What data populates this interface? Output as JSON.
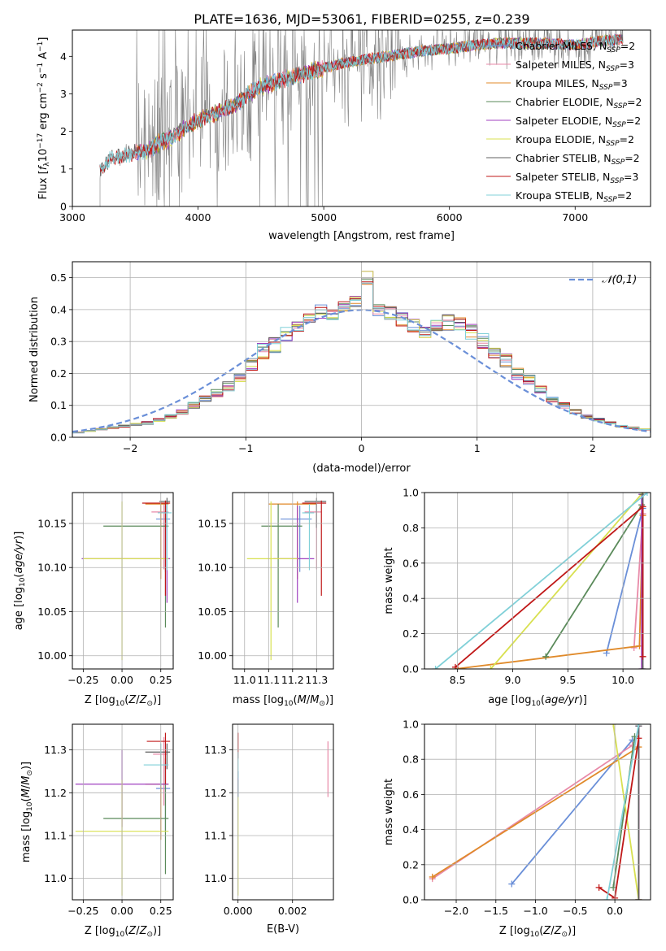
{
  "figure": {
    "title": "PLATE=1636, MJD=53061, FIBERID=0255, z=0.239"
  },
  "colors": {
    "Chabrier MILES": "#6a8fd8",
    "Salpeter MILES": "#e88aa8",
    "Kroupa MILES": "#e08a2a",
    "Chabrier ELODIE": "#5a8a5a",
    "Salpeter ELODIE": "#a040c0",
    "Kroupa ELODIE": "#d8e050",
    "Chabrier STELIB": "#606060",
    "Salpeter STELIB": "#c01818",
    "Kroupa STELIB": "#80d0d8",
    "data": "#808080",
    "normal": "#6a8fd8"
  },
  "chart_data": [
    {
      "id": "spectrum",
      "type": "line",
      "xlabel": "wavelength [Angstrom, rest frame]",
      "ylabel": "Flux [f_λ 10^-17 erg cm^-2 s^-1 A^-1]",
      "xlim": [
        3000,
        7600
      ],
      "ylim": [
        0,
        4.7
      ],
      "xticks": [
        3000,
        4000,
        5000,
        6000,
        7000
      ],
      "yticks": [
        0,
        1,
        2,
        3,
        4
      ],
      "grid": false,
      "legend_position": "top-right",
      "legend": [
        {
          "name": "Chabrier MILES",
          "nssp": "2"
        },
        {
          "name": "Salpeter MILES",
          "nssp": "3"
        },
        {
          "name": "Kroupa MILES",
          "nssp": "3"
        },
        {
          "name": "Chabrier ELODIE",
          "nssp": "2"
        },
        {
          "name": "Salpeter ELODIE",
          "nssp": "2"
        },
        {
          "name": "Kroupa ELODIE",
          "nssp": "2"
        },
        {
          "name": "Chabrier STELIB",
          "nssp": "2"
        },
        {
          "name": "Salpeter STELIB",
          "nssp": "3"
        },
        {
          "name": "Kroupa STELIB",
          "nssp": "2"
        }
      ],
      "continuum": {
        "x": [
          3220,
          3300,
          3400,
          3500,
          3600,
          3700,
          3800,
          3900,
          4000,
          4100,
          4200,
          4300,
          4400,
          4500,
          4700,
          4900,
          5000,
          5200,
          5400,
          5600,
          5800,
          6000,
          6200,
          6400,
          6600,
          6800,
          7000,
          7200,
          7380
        ],
        "y": [
          0.95,
          1.25,
          1.35,
          1.45,
          1.5,
          1.7,
          1.85,
          2.1,
          2.3,
          2.45,
          2.55,
          2.7,
          3.0,
          3.2,
          3.4,
          3.6,
          3.7,
          3.85,
          3.95,
          4.05,
          4.15,
          4.2,
          4.3,
          4.35,
          4.35,
          4.35,
          4.3,
          4.4,
          4.45
        ]
      }
    },
    {
      "id": "residuals",
      "type": "bar",
      "xlabel": "(data-model)/error",
      "ylabel": "Normed distribution",
      "xlim": [
        -2.5,
        2.5
      ],
      "ylim": [
        0,
        0.55
      ],
      "xticks": [
        -2,
        -1,
        0,
        1,
        2
      ],
      "yticks": [
        0.0,
        0.1,
        0.2,
        0.3,
        0.4,
        0.5
      ],
      "grid": true,
      "legend_position": "top-right",
      "legend_label": "𝒩(0,1)",
      "bins": [
        -2.5,
        -2.4,
        -2.3,
        -2.2,
        -2.1,
        -2.0,
        -1.9,
        -1.8,
        -1.7,
        -1.6,
        -1.5,
        -1.4,
        -1.3,
        -1.2,
        -1.1,
        -1.0,
        -0.9,
        -0.8,
        -0.7,
        -0.6,
        -0.5,
        -0.4,
        -0.3,
        -0.2,
        -0.1,
        0.0,
        0.1,
        0.2,
        0.3,
        0.4,
        0.5,
        0.6,
        0.7,
        0.8,
        0.9,
        1.0,
        1.1,
        1.2,
        1.3,
        1.4,
        1.5,
        1.6,
        1.7,
        1.8,
        1.9,
        2.0,
        2.1,
        2.2,
        2.3,
        2.4,
        2.5
      ],
      "histogram": [
        0.015,
        0.02,
        0.025,
        0.03,
        0.035,
        0.04,
        0.045,
        0.055,
        0.065,
        0.08,
        0.1,
        0.12,
        0.14,
        0.16,
        0.19,
        0.23,
        0.27,
        0.29,
        0.32,
        0.34,
        0.37,
        0.39,
        0.39,
        0.4,
        0.43,
        0.5,
        0.4,
        0.39,
        0.37,
        0.35,
        0.33,
        0.35,
        0.36,
        0.36,
        0.33,
        0.3,
        0.27,
        0.24,
        0.2,
        0.18,
        0.15,
        0.12,
        0.1,
        0.08,
        0.065,
        0.055,
        0.045,
        0.035,
        0.03,
        0.025
      ]
    },
    {
      "id": "age-vs-Z",
      "type": "scatter",
      "xlabel": "Z [log10(Z/Z☉)]",
      "ylabel": "age  [log10(age/yr)]",
      "xlim": [
        -0.32,
        0.33
      ],
      "ylim": [
        9.985,
        10.185
      ],
      "xticks": [
        -0.25,
        0.0,
        0.25
      ],
      "yticks": [
        10.0,
        10.05,
        10.1,
        10.15
      ],
      "grid": true,
      "points": [
        {
          "model": "Chabrier MILES",
          "x": 0.28,
          "y": 10.155,
          "xerr": [
            0.06,
            0.03
          ],
          "yerr": [
            0.06,
            0.015
          ]
        },
        {
          "model": "Salpeter MILES",
          "x": 0.27,
          "y": 10.163,
          "xerr": [
            0.08,
            0.03
          ],
          "yerr": [
            0.065,
            0.01
          ]
        },
        {
          "model": "Kroupa MILES",
          "x": 0.25,
          "y": 10.172,
          "xerr": [
            0.1,
            0.05
          ],
          "yerr": [
            0.085,
            0.003
          ]
        },
        {
          "model": "Chabrier ELODIE",
          "x": 0.28,
          "y": 10.147,
          "xerr": [
            0.4,
            0.02
          ],
          "yerr": [
            0.115,
            0.025
          ]
        },
        {
          "model": "Salpeter ELODIE",
          "x": 0.29,
          "y": 10.11,
          "xerr": [
            0.55,
            0.02
          ],
          "yerr": [
            0.05,
            0.06
          ]
        },
        {
          "model": "Kroupa ELODIE",
          "x": 0.0,
          "y": 10.11,
          "xerr": [
            0.25,
            0.3
          ],
          "yerr": [
            0.115,
            0.065
          ]
        },
        {
          "model": "Chabrier STELIB",
          "x": 0.29,
          "y": 10.175,
          "xerr": [
            0.05,
            0.02
          ],
          "yerr": [
            0.03,
            0.004
          ]
        },
        {
          "model": "Salpeter STELIB",
          "x": 0.28,
          "y": 10.173,
          "xerr": [
            0.15,
            0.03
          ],
          "yerr": [
            0.105,
            0.003
          ]
        },
        {
          "model": "Kroupa STELIB",
          "x": 0.29,
          "y": 10.162,
          "xerr": [
            0.06,
            0.03
          ],
          "yerr": [
            0.065,
            0.01
          ]
        }
      ]
    },
    {
      "id": "age-vs-mass",
      "type": "scatter",
      "xlabel": "mass [log10(M/M☉)]",
      "ylabel": "",
      "xlim": [
        10.95,
        11.37
      ],
      "ylim": [
        9.985,
        10.185
      ],
      "xticks": [
        11.0,
        11.1,
        11.2,
        11.3
      ],
      "yticks": [
        10.0,
        10.05,
        10.1,
        10.15
      ],
      "grid": true,
      "points": [
        {
          "model": "Chabrier MILES",
          "x": 11.23,
          "y": 10.155,
          "xerr": [
            0.08,
            0.05
          ],
          "yerr": [
            0.06,
            0.015
          ]
        },
        {
          "model": "Salpeter MILES",
          "x": 11.3,
          "y": 10.163,
          "xerr": [
            0.05,
            0.02
          ],
          "yerr": [
            0.065,
            0.01
          ]
        },
        {
          "model": "Kroupa MILES",
          "x": 11.22,
          "y": 10.172,
          "xerr": [
            0.12,
            0.08
          ],
          "yerr": [
            0.085,
            0.003
          ]
        },
        {
          "model": "Chabrier ELODIE",
          "x": 11.14,
          "y": 10.147,
          "xerr": [
            0.07,
            0.1
          ],
          "yerr": [
            0.115,
            0.025
          ]
        },
        {
          "model": "Salpeter ELODIE",
          "x": 11.22,
          "y": 10.11,
          "xerr": [
            0.1,
            0.07
          ],
          "yerr": [
            0.05,
            0.06
          ]
        },
        {
          "model": "Kroupa ELODIE",
          "x": 11.11,
          "y": 10.11,
          "xerr": [
            0.1,
            0.11
          ],
          "yerr": [
            0.115,
            0.065
          ]
        },
        {
          "model": "Chabrier STELIB",
          "x": 11.3,
          "y": 10.175,
          "xerr": [
            0.05,
            0.04
          ],
          "yerr": [
            0.03,
            0.004
          ]
        },
        {
          "model": "Salpeter STELIB",
          "x": 11.32,
          "y": 10.173,
          "xerr": [
            0.08,
            0.02
          ],
          "yerr": [
            0.105,
            0.003
          ]
        },
        {
          "model": "Kroupa STELIB",
          "x": 11.27,
          "y": 10.162,
          "xerr": [
            0.03,
            0.02
          ],
          "yerr": [
            0.065,
            0.01
          ]
        }
      ]
    },
    {
      "id": "weight-vs-age",
      "type": "line",
      "xlabel": "age  [log10(age/yr)]",
      "ylabel": "mass weight",
      "xlim": [
        8.2,
        10.25
      ],
      "ylim": [
        0,
        1.0
      ],
      "xticks": [
        8.5,
        9.0,
        9.5,
        10.0
      ],
      "yticks": [
        0.0,
        0.2,
        0.4,
        0.6,
        0.8,
        1.0
      ],
      "grid": true,
      "series": [
        {
          "model": "Chabrier MILES",
          "x": [
            9.85,
            10.18
          ],
          "y": [
            0.09,
            0.91
          ]
        },
        {
          "model": "Salpeter MILES",
          "x": [
            10.1,
            10.18
          ],
          "y": [
            0.12,
            0.88
          ]
        },
        {
          "model": "Kroupa MILES",
          "x": [
            8.48,
            10.15,
            10.18
          ],
          "y": [
            0.0,
            0.13,
            0.87
          ]
        },
        {
          "model": "Chabrier ELODIE",
          "x": [
            9.3,
            10.17
          ],
          "y": [
            0.07,
            0.93
          ]
        },
        {
          "model": "Salpeter ELODIE",
          "x": [
            10.17,
            10.17
          ],
          "y": [
            0.0,
            0.99
          ]
        },
        {
          "model": "Kroupa ELODIE",
          "x": [
            8.8,
            10.18
          ],
          "y": [
            0.0,
            1.0
          ]
        },
        {
          "model": "Chabrier STELIB",
          "x": [
            10.18,
            10.18
          ],
          "y": [
            0.0,
            0.99
          ]
        },
        {
          "model": "Salpeter STELIB",
          "x": [
            8.48,
            10.18,
            10.18
          ],
          "y": [
            0.01,
            0.92,
            0.07
          ]
        },
        {
          "model": "Kroupa STELIB",
          "x": [
            8.3,
            10.22
          ],
          "y": [
            0.0,
            1.0
          ]
        }
      ]
    },
    {
      "id": "mass-vs-Z",
      "type": "scatter",
      "xlabel": "Z [log10(Z/Z☉)]",
      "ylabel": "mass [log10(M/M☉)]",
      "xlim": [
        -0.32,
        0.33
      ],
      "ylim": [
        10.95,
        11.36
      ],
      "xticks": [
        -0.25,
        0.0,
        0.25
      ],
      "yticks": [
        11.0,
        11.1,
        11.2,
        11.3
      ],
      "grid": true,
      "points": [
        {
          "model": "Chabrier MILES",
          "x": 0.28,
          "y": 11.21,
          "xerr": [
            0.06,
            0.03
          ],
          "yerr": [
            0.1,
            0.06
          ]
        },
        {
          "model": "Salpeter MILES",
          "x": 0.27,
          "y": 11.29,
          "xerr": [
            0.07,
            0.02
          ],
          "yerr": [
            0.12,
            0.04
          ]
        },
        {
          "model": "Kroupa MILES",
          "x": 0.25,
          "y": 11.22,
          "xerr": [
            0.1,
            0.05
          ],
          "yerr": [
            0.13,
            0.07
          ]
        },
        {
          "model": "Chabrier ELODIE",
          "x": 0.28,
          "y": 11.14,
          "xerr": [
            0.4,
            0.02
          ],
          "yerr": [
            0.13,
            0.14
          ]
        },
        {
          "model": "Salpeter ELODIE",
          "x": 0.0,
          "y": 11.22,
          "xerr": [
            0.3,
            0.3
          ],
          "yerr": [
            0.1,
            0.08
          ]
        },
        {
          "model": "Kroupa ELODIE",
          "x": 0.0,
          "y": 11.11,
          "xerr": [
            0.3,
            0.3
          ],
          "yerr": [
            0.15,
            0.12
          ]
        },
        {
          "model": "Chabrier STELIB",
          "x": 0.29,
          "y": 11.295,
          "xerr": [
            0.14,
            0.02
          ],
          "yerr": [
            0.04,
            0.02
          ]
        },
        {
          "model": "Salpeter STELIB",
          "x": 0.28,
          "y": 11.32,
          "xerr": [
            0.12,
            0.03
          ],
          "yerr": [
            0.1,
            0.02
          ]
        },
        {
          "model": "Kroupa STELIB",
          "x": 0.25,
          "y": 11.265,
          "xerr": [
            0.11,
            0.05
          ],
          "yerr": [
            0.05,
            0.05
          ]
        }
      ]
    },
    {
      "id": "mass-vs-EBV",
      "type": "scatter",
      "xlabel": "E(B-V)",
      "ylabel": "",
      "xlim": [
        -0.0002,
        0.0035
      ],
      "ylim": [
        10.95,
        11.36
      ],
      "xticks": [
        0.0,
        0.002
      ],
      "xticklabels": [
        "0.000",
        "0.002"
      ],
      "yticks": [
        11.0,
        11.1,
        11.2,
        11.3
      ],
      "grid": true,
      "points": [
        {
          "model": "Salpeter MILES",
          "x": 0.0033,
          "y": 11.255,
          "yerr": [
            0.065,
            0.065
          ]
        },
        {
          "model": "Kroupa ELODIE",
          "x": 0.0,
          "y": 11.11,
          "yerr": [
            0.15,
            0.12
          ]
        },
        {
          "model": "Salpeter STELIB",
          "x": 0.0,
          "y": 11.3,
          "yerr": [
            0.02,
            0.04
          ]
        },
        {
          "model": "Chabrier MILES",
          "x": 0.0,
          "y": 11.21,
          "yerr": [
            0.02,
            0.04
          ]
        },
        {
          "model": "Kroupa STELIB",
          "x": 0.0,
          "y": 11.265,
          "yerr": [
            0.03,
            0.03
          ]
        }
      ]
    },
    {
      "id": "weight-vs-Z",
      "type": "line",
      "xlabel": "Z [log10(Z/Z☉)]",
      "ylabel": "mass weight",
      "xlim": [
        -2.4,
        0.45
      ],
      "ylim": [
        0,
        1.0
      ],
      "xticks": [
        -2.0,
        -1.5,
        -1.0,
        -0.5,
        0.0
      ],
      "yticks": [
        0.0,
        0.2,
        0.4,
        0.6,
        0.8,
        1.0
      ],
      "grid": true,
      "series": [
        {
          "model": "Chabrier MILES",
          "x": [
            -1.3,
            0.22
          ],
          "y": [
            0.09,
            0.91
          ]
        },
        {
          "model": "Salpeter MILES",
          "x": [
            -2.3,
            0.22
          ],
          "y": [
            0.12,
            0.88
          ]
        },
        {
          "model": "Kroupa MILES",
          "x": [
            -2.3,
            0.3,
            0.3
          ],
          "y": [
            0.13,
            0.87,
            0.0
          ]
        },
        {
          "model": "Chabrier ELODIE",
          "x": [
            -0.02,
            0.25
          ],
          "y": [
            0.07,
            0.93
          ]
        },
        {
          "model": "Salpeter ELODIE",
          "x": [
            0.3,
            0.3
          ],
          "y": [
            0.0,
            0.99
          ]
        },
        {
          "model": "Kroupa ELODIE",
          "x": [
            -0.02,
            0.3
          ],
          "y": [
            1.0,
            0.0
          ]
        },
        {
          "model": "Chabrier STELIB",
          "x": [
            0.3,
            0.3
          ],
          "y": [
            0.0,
            0.99
          ]
        },
        {
          "model": "Salpeter STELIB",
          "x": [
            -0.2,
            0.0,
            0.3
          ],
          "y": [
            0.07,
            0.01,
            0.92
          ]
        },
        {
          "model": "Kroupa STELIB",
          "x": [
            -0.1,
            0.3
          ],
          "y": [
            0.0,
            1.0
          ]
        }
      ]
    }
  ]
}
